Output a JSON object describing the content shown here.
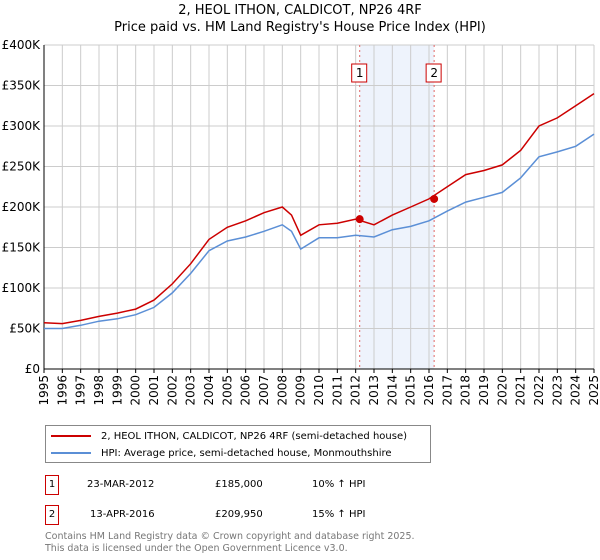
{
  "chart_data": {
    "type": "line",
    "title": "2, HEOL ITHON, CALDICOT, NP26 4RF",
    "subtitle": "Price paid vs. HM Land Registry's House Price Index (HPI)",
    "xlim": [
      1995,
      2025
    ],
    "ylim": [
      0,
      400000
    ],
    "x_ticks": [
      "1995",
      "1996",
      "1997",
      "1998",
      "1999",
      "2000",
      "2001",
      "2002",
      "2003",
      "2004",
      "2005",
      "2006",
      "2007",
      "2008",
      "2009",
      "2010",
      "2011",
      "2012",
      "2013",
      "2014",
      "2015",
      "2016",
      "2017",
      "2018",
      "2019",
      "2020",
      "2021",
      "2022",
      "2023",
      "2024",
      "2025"
    ],
    "y_ticks": [
      {
        "v": 0,
        "l": "£0"
      },
      {
        "v": 50000,
        "l": "£50K"
      },
      {
        "v": 100000,
        "l": "£100K"
      },
      {
        "v": 150000,
        "l": "£150K"
      },
      {
        "v": 200000,
        "l": "£200K"
      },
      {
        "v": 250000,
        "l": "£250K"
      },
      {
        "v": 300000,
        "l": "£300K"
      },
      {
        "v": 350000,
        "l": "£350K"
      },
      {
        "v": 400000,
        "l": "£400K"
      }
    ],
    "grid": true,
    "x": [
      1995,
      1996,
      1997,
      1998,
      1999,
      2000,
      2001,
      2002,
      2003,
      2004,
      2005,
      2006,
      2007,
      2008,
      2008.5,
      2009,
      2010,
      2011,
      2012,
      2013,
      2014,
      2015,
      2016,
      2017,
      2018,
      2019,
      2020,
      2021,
      2022,
      2023,
      2024,
      2025
    ],
    "series": [
      {
        "name": "2, HEOL ITHON, CALDICOT, NP26 4RF (semi-detached house)",
        "color": "#cc0000",
        "values": [
          57000,
          56000,
          60000,
          65000,
          69000,
          74000,
          85000,
          105000,
          130000,
          160000,
          175000,
          183000,
          193000,
          200000,
          190000,
          165000,
          178000,
          180000,
          185000,
          178000,
          190000,
          200000,
          210000,
          225000,
          240000,
          245000,
          252000,
          270000,
          300000,
          310000,
          325000,
          340000
        ]
      },
      {
        "name": "HPI: Average price, semi-detached house, Monmouthshire",
        "color": "#5b8fd6",
        "values": [
          50000,
          50000,
          54000,
          59000,
          62000,
          67000,
          76000,
          94000,
          118000,
          146000,
          158000,
          163000,
          170000,
          178000,
          170000,
          148000,
          162000,
          162000,
          165000,
          163000,
          172000,
          176000,
          183000,
          195000,
          206000,
          212000,
          218000,
          236000,
          262000,
          268000,
          275000,
          290000
        ]
      }
    ],
    "sales": [
      {
        "label": "1",
        "x": 2012.22,
        "value": 185000
      },
      {
        "label": "2",
        "x": 2016.28,
        "value": 209950
      }
    ],
    "shaded_range": [
      2012.22,
      2016.28
    ],
    "legend_position": "below"
  },
  "transactions": [
    {
      "n": "1",
      "date": "23-MAR-2012",
      "price": "£185,000",
      "hpi": "10% ↑ HPI"
    },
    {
      "n": "2",
      "date": "13-APR-2016",
      "price": "£209,950",
      "hpi": "15% ↑ HPI"
    }
  ],
  "footer": {
    "line1": "Contains HM Land Registry data © Crown copyright and database right 2025.",
    "line2": "This data is licensed under the Open Government Licence v3.0."
  }
}
